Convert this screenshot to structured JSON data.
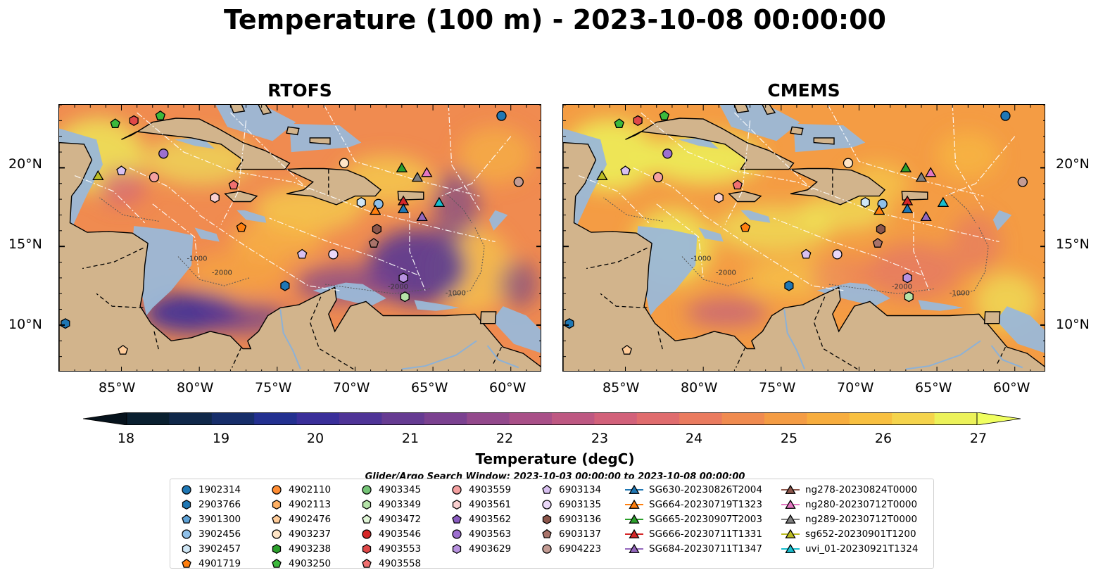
{
  "figure_title": "Temperature (100 m) - 2023-10-08 00:00:00",
  "panels": [
    {
      "title": "RTOFS",
      "key": "rtofs"
    },
    {
      "title": "CMEMS",
      "key": "cmems"
    }
  ],
  "axes": {
    "lat_ticks": [
      "20°N",
      "15°N",
      "10°N"
    ],
    "lon_ticks": [
      "85°W",
      "80°W",
      "75°W",
      "70°W",
      "65°W",
      "60°W"
    ],
    "lon_range": [
      -89,
      -58
    ],
    "lat_range": [
      7,
      24
    ]
  },
  "isobath_labels": [
    "-1000",
    "-2000",
    "-2000",
    "-1000"
  ],
  "colorbar": {
    "label": "Temperature (degC)",
    "ticks": [
      "18",
      "19",
      "20",
      "21",
      "22",
      "23",
      "24",
      "25",
      "26",
      "27"
    ],
    "range": [
      18,
      27
    ],
    "extend": "both",
    "colors": [
      "#0a2030",
      "#10284a",
      "#172e6a",
      "#233090",
      "#3a2f9a",
      "#4f3497",
      "#663b92",
      "#7b4190",
      "#93498c",
      "#a95088",
      "#be5882",
      "#d2617a",
      "#e06c6e",
      "#ea7b5f",
      "#f08b50",
      "#f49c44",
      "#f7ad3e",
      "#f8c040",
      "#f5d44c",
      "#ecf25a"
    ]
  },
  "search_window_text": "Glider/Argo Search Window: 2023-10-03 00:00:00 to 2023-10-08 00:00:00",
  "legend": {
    "columns": [
      [
        {
          "label": "1902314",
          "marker": "circle",
          "color": "#1f77b4"
        },
        {
          "label": "2903766",
          "marker": "hexagon",
          "color": "#1f77b4"
        },
        {
          "label": "3901300",
          "marker": "pentagon",
          "color": "#5fa2d6"
        },
        {
          "label": "3902456",
          "marker": "circle",
          "color": "#8fc0e9"
        },
        {
          "label": "3902457",
          "marker": "hexagon",
          "color": "#cfe6f5"
        },
        {
          "label": "4901719",
          "marker": "pentagon",
          "color": "#ff7f0e"
        }
      ],
      [
        {
          "label": "4902110",
          "marker": "circle",
          "color": "#ff8c33"
        },
        {
          "label": "4902113",
          "marker": "hexagon",
          "color": "#ffb063"
        },
        {
          "label": "4902476",
          "marker": "pentagon",
          "color": "#ffcc99"
        },
        {
          "label": "4903237",
          "marker": "circle",
          "color": "#ffe5c6"
        },
        {
          "label": "4903238",
          "marker": "hexagon",
          "color": "#2ca02c"
        },
        {
          "label": "4903250",
          "marker": "pentagon",
          "color": "#3cb93c"
        }
      ],
      [
        {
          "label": "4903345",
          "marker": "circle",
          "color": "#74c476"
        },
        {
          "label": "4903349",
          "marker": "hexagon",
          "color": "#b5e3a8"
        },
        {
          "label": "4903472",
          "marker": "pentagon",
          "color": "#e0f5d6"
        },
        {
          "label": "4903546",
          "marker": "circle",
          "color": "#d62728"
        },
        {
          "label": "4903553",
          "marker": "hexagon",
          "color": "#e04848"
        },
        {
          "label": "4903558",
          "marker": "pentagon",
          "color": "#f07070"
        }
      ],
      [
        {
          "label": "4903559",
          "marker": "circle",
          "color": "#f4a0a0"
        },
        {
          "label": "4903561",
          "marker": "hexagon",
          "color": "#fad0d0"
        },
        {
          "label": "4903562",
          "marker": "pentagon",
          "color": "#8a5cc0"
        },
        {
          "label": "4903563",
          "marker": "circle",
          "color": "#9d6fcf"
        },
        {
          "label": "4903629",
          "marker": "hexagon",
          "color": "#b892e0"
        }
      ],
      [
        {
          "label": "6903134",
          "marker": "pentagon",
          "color": "#d8c0f0"
        },
        {
          "label": "6903135",
          "marker": "circle",
          "color": "#ead8f8"
        },
        {
          "label": "6903136",
          "marker": "hexagon",
          "color": "#8c564b"
        },
        {
          "label": "6903137",
          "marker": "pentagon",
          "color": "#a9736a"
        },
        {
          "label": "6904223",
          "marker": "circle",
          "color": "#c49c94"
        }
      ],
      [
        {
          "label": "SG630-20230826T2004",
          "marker": "triangle",
          "color": "#1f77b4"
        },
        {
          "label": "SG664-20230719T1323",
          "marker": "triangle",
          "color": "#ff7f0e"
        },
        {
          "label": "SG665-20230907T2003",
          "marker": "triangle",
          "color": "#2ca02c"
        },
        {
          "label": "SG666-20230711T1331",
          "marker": "triangle",
          "color": "#d62728"
        },
        {
          "label": "SG684-20230711T1347",
          "marker": "triangle",
          "color": "#9467bd"
        }
      ],
      [
        {
          "label": "ng278-20230824T0000",
          "marker": "triangle",
          "color": "#8c564b"
        },
        {
          "label": "ng280-20230712T0000",
          "marker": "triangle",
          "color": "#e377c2"
        },
        {
          "label": "ng289-20230712T0000",
          "marker": "triangle",
          "color": "#7f7f7f"
        },
        {
          "label": "sg652-20230901T1200",
          "marker": "triangle",
          "color": "#bcbd22"
        },
        {
          "label": "uvi_01-20230921T1324",
          "marker": "triangle",
          "color": "#17becf"
        }
      ]
    ]
  },
  "observations": [
    {
      "marker": "circle",
      "color": "#1f77b4",
      "lon": -60.6,
      "lat": 23.3
    },
    {
      "marker": "circle",
      "color": "#c49c94",
      "lon": -59.5,
      "lat": 19.1
    },
    {
      "marker": "pentagon",
      "color": "#3cb93c",
      "lon": -85.4,
      "lat": 22.8
    },
    {
      "marker": "hexagon",
      "color": "#e04848",
      "lon": -84.2,
      "lat": 23.0
    },
    {
      "marker": "pentagon",
      "color": "#3cb93c",
      "lon": -82.5,
      "lat": 23.3
    },
    {
      "marker": "circle",
      "color": "#9d6fcf",
      "lon": -82.3,
      "lat": 20.9
    },
    {
      "marker": "pentagon",
      "color": "#d8c0f0",
      "lon": -85.0,
      "lat": 19.8
    },
    {
      "marker": "circle",
      "color": "#f4a0a0",
      "lon": -82.9,
      "lat": 19.4
    },
    {
      "marker": "hexagon",
      "color": "#fad0d0",
      "lon": -79.0,
      "lat": 18.1
    },
    {
      "marker": "pentagon",
      "color": "#f07070",
      "lon": -77.8,
      "lat": 18.9
    },
    {
      "marker": "pentagon",
      "color": "#ff7f0e",
      "lon": -77.3,
      "lat": 16.2
    },
    {
      "marker": "circle",
      "color": "#ffe5c6",
      "lon": -70.7,
      "lat": 20.3
    },
    {
      "marker": "hexagon",
      "color": "#cfe6f5",
      "lon": -69.6,
      "lat": 17.8
    },
    {
      "marker": "circle",
      "color": "#8fc0e9",
      "lon": -68.5,
      "lat": 17.7
    },
    {
      "marker": "hexagon",
      "color": "#8c564b",
      "lon": -68.6,
      "lat": 16.1
    },
    {
      "marker": "pentagon",
      "color": "#a9736a",
      "lon": -68.8,
      "lat": 15.2
    },
    {
      "marker": "pentagon",
      "color": "#d8c0f0",
      "lon": -73.4,
      "lat": 14.5
    },
    {
      "marker": "circle",
      "color": "#ead8f8",
      "lon": -71.4,
      "lat": 14.5
    },
    {
      "marker": "hexagon",
      "color": "#1f77b4",
      "lon": -74.5,
      "lat": 12.5
    },
    {
      "marker": "hexagon",
      "color": "#b892e0",
      "lon": -66.9,
      "lat": 13.0
    },
    {
      "marker": "hexagon",
      "color": "#b5e3a8",
      "lon": -66.8,
      "lat": 11.8
    },
    {
      "marker": "hexagon",
      "color": "#1f77b4",
      "lon": -88.6,
      "lat": 10.1
    },
    {
      "marker": "pentagon",
      "color": "#ffcc99",
      "lon": -84.9,
      "lat": 8.4
    },
    {
      "marker": "triangle",
      "color": "#bcbd22",
      "lon": -86.5,
      "lat": 19.5
    },
    {
      "marker": "triangle",
      "color": "#2ca02c",
      "lon": -67.0,
      "lat": 20.0
    },
    {
      "marker": "triangle",
      "color": "#7f7f7f",
      "lon": -66.0,
      "lat": 19.4
    },
    {
      "marker": "triangle",
      "color": "#e377c2",
      "lon": -65.4,
      "lat": 19.7
    },
    {
      "marker": "triangle",
      "color": "#d62728",
      "lon": -66.9,
      "lat": 17.9
    },
    {
      "marker": "triangle",
      "color": "#1f77b4",
      "lon": -66.9,
      "lat": 17.4
    },
    {
      "marker": "triangle",
      "color": "#ff7f0e",
      "lon": -68.7,
      "lat": 17.3
    },
    {
      "marker": "triangle",
      "color": "#9467bd",
      "lon": -65.7,
      "lat": 16.9
    },
    {
      "marker": "triangle",
      "color": "#17becf",
      "lon": -64.6,
      "lat": 17.8
    }
  ]
}
